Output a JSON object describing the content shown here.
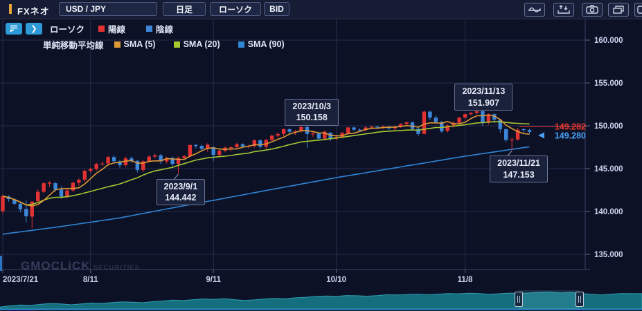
{
  "toolbar": {
    "app_label": "FXネオ",
    "symbol": "USD / JPY",
    "timeframe": "日足",
    "chart_type": "ローソク",
    "price_mode": "BID"
  },
  "legend": {
    "candle_label": "ローソク",
    "bullish_label": "陽線",
    "bearish_label": "陰線",
    "sma_title": "単純移動平均線",
    "sma_items": [
      {
        "label": "SMA (5)",
        "color": "#dd9933"
      },
      {
        "label": "SMA (20)",
        "color": "#a6c832"
      },
      {
        "label": "SMA (90)",
        "color": "#2f85d6"
      }
    ],
    "bullish_color": "#e23232",
    "bearish_color": "#3d87db"
  },
  "chart_data": {
    "type": "candlestick",
    "title": "USD/JPY 日足 ローソク BID",
    "y_ticks": [
      {
        "value": 160,
        "label": "160.000"
      },
      {
        "value": 155,
        "label": "155.000"
      },
      {
        "value": 150,
        "label": "150.000"
      },
      {
        "value": 145,
        "label": "145.000"
      },
      {
        "value": 140,
        "label": "140.000"
      },
      {
        "value": 135,
        "label": "135.000"
      }
    ],
    "x_ticks": [
      {
        "index": 0,
        "label": "2023/7/21"
      },
      {
        "index": 15,
        "label": "8/11"
      },
      {
        "index": 36,
        "label": "9/11"
      },
      {
        "index": 57,
        "label": "10/10"
      },
      {
        "index": 79,
        "label": "11/8"
      }
    ],
    "dates": [
      "7/21",
      "7/24",
      "7/25",
      "7/26",
      "7/27",
      "7/28",
      "7/31",
      "8/1",
      "8/2",
      "8/3",
      "8/4",
      "8/7",
      "8/8",
      "8/9",
      "8/10",
      "8/11",
      "8/14",
      "8/15",
      "8/16",
      "8/17",
      "8/18",
      "8/21",
      "8/22",
      "8/23",
      "8/24",
      "8/25",
      "8/28",
      "8/29",
      "8/30",
      "8/31",
      "9/1",
      "9/4",
      "9/5",
      "9/6",
      "9/7",
      "9/8",
      "9/11",
      "9/12",
      "9/13",
      "9/14",
      "9/15",
      "9/18",
      "9/19",
      "9/20",
      "9/21",
      "9/22",
      "9/25",
      "9/26",
      "9/27",
      "9/28",
      "9/29",
      "10/2",
      "10/3",
      "10/4",
      "10/5",
      "10/6",
      "10/9",
      "10/10",
      "10/11",
      "10/12",
      "10/13",
      "10/16",
      "10/17",
      "10/18",
      "10/19",
      "10/20",
      "10/23",
      "10/24",
      "10/25",
      "10/26",
      "10/27",
      "10/30",
      "10/31",
      "11/1",
      "11/2",
      "11/3",
      "11/6",
      "11/7",
      "11/8",
      "11/9",
      "11/10",
      "11/13",
      "11/14",
      "11/15",
      "11/16",
      "11/17",
      "11/20",
      "11/21",
      "11/22",
      "11/23",
      "11/24"
    ],
    "ohlc": [
      [
        140.05,
        141.95,
        139.75,
        141.8
      ],
      [
        141.75,
        141.9,
        141.15,
        141.45
      ],
      [
        141.4,
        141.55,
        140.75,
        140.9
      ],
      [
        140.9,
        141.1,
        139.9,
        140.25
      ],
      [
        140.3,
        141.3,
        138.75,
        139.45
      ],
      [
        139.4,
        141.2,
        138.05,
        141.15
      ],
      [
        141.2,
        142.65,
        140.95,
        142.3
      ],
      [
        142.3,
        143.4,
        142.1,
        143.3
      ],
      [
        143.3,
        143.55,
        142.85,
        143.35
      ],
      [
        143.3,
        143.45,
        142.3,
        142.55
      ],
      [
        142.55,
        142.95,
        141.5,
        141.75
      ],
      [
        141.8,
        142.6,
        141.55,
        142.45
      ],
      [
        142.45,
        143.5,
        142.3,
        143.35
      ],
      [
        143.35,
        143.85,
        143.0,
        143.7
      ],
      [
        143.7,
        144.9,
        143.45,
        144.75
      ],
      [
        144.75,
        145.1,
        144.5,
        144.95
      ],
      [
        144.95,
        145.7,
        144.75,
        145.55
      ],
      [
        145.55,
        145.85,
        145.3,
        145.6
      ],
      [
        145.6,
        146.5,
        145.4,
        146.35
      ],
      [
        146.35,
        146.55,
        145.6,
        145.85
      ],
      [
        145.85,
        146.0,
        145.1,
        145.4
      ],
      [
        145.4,
        146.4,
        145.2,
        146.2
      ],
      [
        146.2,
        146.45,
        145.65,
        145.9
      ],
      [
        145.9,
        146.0,
        144.55,
        144.85
      ],
      [
        144.85,
        146.0,
        144.6,
        145.85
      ],
      [
        145.85,
        146.6,
        145.75,
        146.4
      ],
      [
        146.4,
        146.75,
        146.2,
        146.55
      ],
      [
        146.55,
        146.7,
        145.55,
        145.85
      ],
      [
        145.85,
        146.4,
        145.6,
        146.25
      ],
      [
        146.25,
        146.4,
        145.3,
        145.55
      ],
      [
        145.55,
        146.4,
        144.442,
        146.25
      ],
      [
        146.25,
        146.6,
        146.0,
        146.45
      ],
      [
        146.45,
        147.85,
        146.3,
        147.75
      ],
      [
        147.75,
        147.9,
        147.35,
        147.65
      ],
      [
        147.65,
        147.85,
        147.0,
        147.3
      ],
      [
        147.3,
        147.95,
        146.95,
        147.8
      ],
      [
        147.5,
        147.6,
        145.9,
        146.6
      ],
      [
        146.6,
        147.25,
        146.4,
        147.1
      ],
      [
        147.1,
        147.6,
        146.9,
        147.45
      ],
      [
        147.45,
        147.65,
        147.0,
        147.5
      ],
      [
        147.5,
        148.0,
        147.3,
        147.85
      ],
      [
        147.85,
        147.95,
        147.45,
        147.6
      ],
      [
        147.6,
        147.8,
        147.4,
        147.65
      ],
      [
        147.65,
        148.4,
        147.45,
        148.3
      ],
      [
        148.3,
        148.45,
        147.3,
        147.55
      ],
      [
        147.55,
        148.45,
        147.3,
        148.35
      ],
      [
        148.35,
        148.95,
        148.25,
        148.85
      ],
      [
        148.85,
        149.2,
        148.6,
        149.05
      ],
      [
        149.05,
        149.7,
        148.8,
        149.6
      ],
      [
        149.6,
        149.7,
        149.05,
        149.3
      ],
      [
        149.3,
        149.5,
        148.95,
        149.35
      ],
      [
        149.35,
        149.95,
        149.2,
        149.85
      ],
      [
        149.85,
        150.158,
        147.43,
        149.05
      ],
      [
        149.05,
        149.3,
        148.7,
        149.1
      ],
      [
        149.1,
        149.2,
        148.25,
        148.5
      ],
      [
        148.5,
        149.45,
        148.3,
        149.3
      ],
      [
        149.2,
        149.25,
        148.2,
        148.5
      ],
      [
        148.5,
        148.9,
        148.3,
        148.7
      ],
      [
        148.7,
        149.3,
        148.55,
        149.15
      ],
      [
        149.15,
        149.9,
        149.0,
        149.8
      ],
      [
        149.8,
        149.9,
        149.35,
        149.55
      ],
      [
        149.55,
        149.7,
        149.3,
        149.5
      ],
      [
        149.5,
        149.95,
        149.35,
        149.8
      ],
      [
        149.8,
        150.0,
        149.6,
        149.9
      ],
      [
        149.9,
        150.0,
        149.6,
        149.85
      ],
      [
        149.85,
        150.05,
        149.65,
        149.9
      ],
      [
        149.9,
        150.0,
        149.5,
        149.7
      ],
      [
        149.7,
        150.05,
        149.4,
        149.9
      ],
      [
        149.9,
        150.3,
        149.75,
        150.2
      ],
      [
        150.2,
        150.5,
        150.1,
        150.4
      ],
      [
        150.4,
        150.45,
        149.45,
        149.65
      ],
      [
        149.65,
        149.85,
        148.8,
        149.05
      ],
      [
        149.05,
        151.75,
        149.0,
        151.65
      ],
      [
        151.65,
        151.75,
        150.65,
        150.95
      ],
      [
        150.95,
        151.2,
        150.25,
        150.45
      ],
      [
        150.45,
        150.55,
        149.2,
        149.35
      ],
      [
        149.4,
        150.2,
        149.2,
        150.05
      ],
      [
        150.05,
        150.5,
        149.8,
        150.35
      ],
      [
        150.35,
        151.05,
        150.2,
        150.95
      ],
      [
        150.95,
        151.45,
        150.8,
        151.35
      ],
      [
        151.35,
        151.6,
        151.2,
        151.5
      ],
      [
        151.5,
        151.907,
        151.35,
        151.7
      ],
      [
        151.7,
        151.8,
        150.0,
        150.35
      ],
      [
        150.35,
        151.45,
        150.15,
        151.35
      ],
      [
        151.35,
        151.45,
        150.3,
        150.7
      ],
      [
        150.7,
        150.8,
        149.2,
        149.6
      ],
      [
        149.6,
        149.7,
        148.1,
        148.35
      ],
      [
        148.35,
        148.6,
        147.153,
        148.4
      ],
      [
        148.4,
        149.75,
        148.25,
        149.55
      ],
      [
        149.6,
        149.75,
        149.2,
        149.5
      ],
      [
        149.5,
        149.65,
        149.05,
        149.28
      ]
    ],
    "sma_periods": [
      5,
      20,
      90
    ],
    "sma90_anchors": [
      [
        0,
        137.35
      ],
      [
        10,
        138.25
      ],
      [
        20,
        139.25
      ],
      [
        30,
        140.55
      ],
      [
        36,
        141.3
      ],
      [
        45,
        142.45
      ],
      [
        57,
        143.95
      ],
      [
        68,
        145.2
      ],
      [
        79,
        146.45
      ],
      [
        85,
        147.05
      ],
      [
        90,
        147.55
      ]
    ],
    "annotations": [
      {
        "date": "2023/9/1",
        "value": "144.442",
        "index": 30,
        "price": 144.442,
        "side": "below"
      },
      {
        "date": "2023/10/3",
        "value": "150.158",
        "index": 52,
        "price": 150.158,
        "side": "above"
      },
      {
        "date": "2023/11/13",
        "value": "151.907",
        "index": 81,
        "price": 151.907,
        "side": "above"
      },
      {
        "date": "2023/11/21",
        "value": "147.153",
        "index": 87,
        "price": 147.153,
        "side": "below"
      }
    ],
    "price_labels": {
      "upper": {
        "text": "149.282",
        "color": "#e5372b"
      },
      "lower": {
        "text": "149.280",
        "color": "#49a0f2"
      },
      "current_price": 149.28
    }
  },
  "navigator": {
    "values": [
      127.9,
      129.8,
      131.1,
      130.4,
      132.2,
      133.5,
      132.8,
      131.4,
      132.9,
      134.2,
      133.6,
      135.0,
      136.2,
      135.5,
      134.8,
      136.4,
      137.5,
      138.9,
      138.2,
      139.6,
      140.9,
      140.2,
      141.3,
      139.6,
      138.4,
      139.3,
      140.9,
      141.8,
      141.2,
      142.6,
      143.5,
      144.9,
      145.6,
      145.0,
      146.3,
      146.0,
      145.3,
      146.2,
      147.6,
      147.2,
      147.9,
      148.3,
      147.5,
      148.5,
      149.4,
      149.1,
      149.9,
      149.5,
      148.4,
      149.2,
      150.2,
      149.7,
      150.4,
      151.7,
      151.9,
      150.4,
      151.4,
      149.6,
      148.3,
      147.2,
      148.5,
      149.5,
      149.3,
      149.3
    ],
    "handle_centers": [
      749,
      837
    ],
    "area_color": "#156e7d",
    "edge_color": "#2f9fb2"
  },
  "watermark": {
    "brand": "GMOCLiCK",
    "sub": "SECURITIES"
  }
}
